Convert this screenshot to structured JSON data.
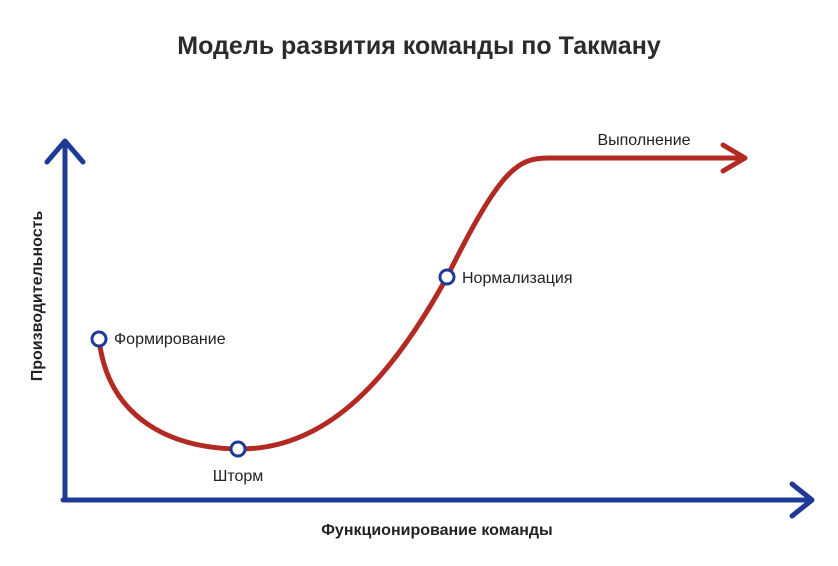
{
  "title": "Модель развития команды по Такману",
  "axes": {
    "y_label": "Производительность",
    "x_label": "Функционирование команды"
  },
  "stages": [
    {
      "name": "Формирование"
    },
    {
      "name": "Шторм"
    },
    {
      "name": "Нормализация"
    },
    {
      "name": "Выполнение"
    }
  ],
  "colors": {
    "axis": "#1e3a97",
    "curve": "#b32a22",
    "marker_fill": "#ffffff",
    "marker_stroke": "#1e3a97",
    "title": "#2b2b2b",
    "text": "#222222"
  }
}
